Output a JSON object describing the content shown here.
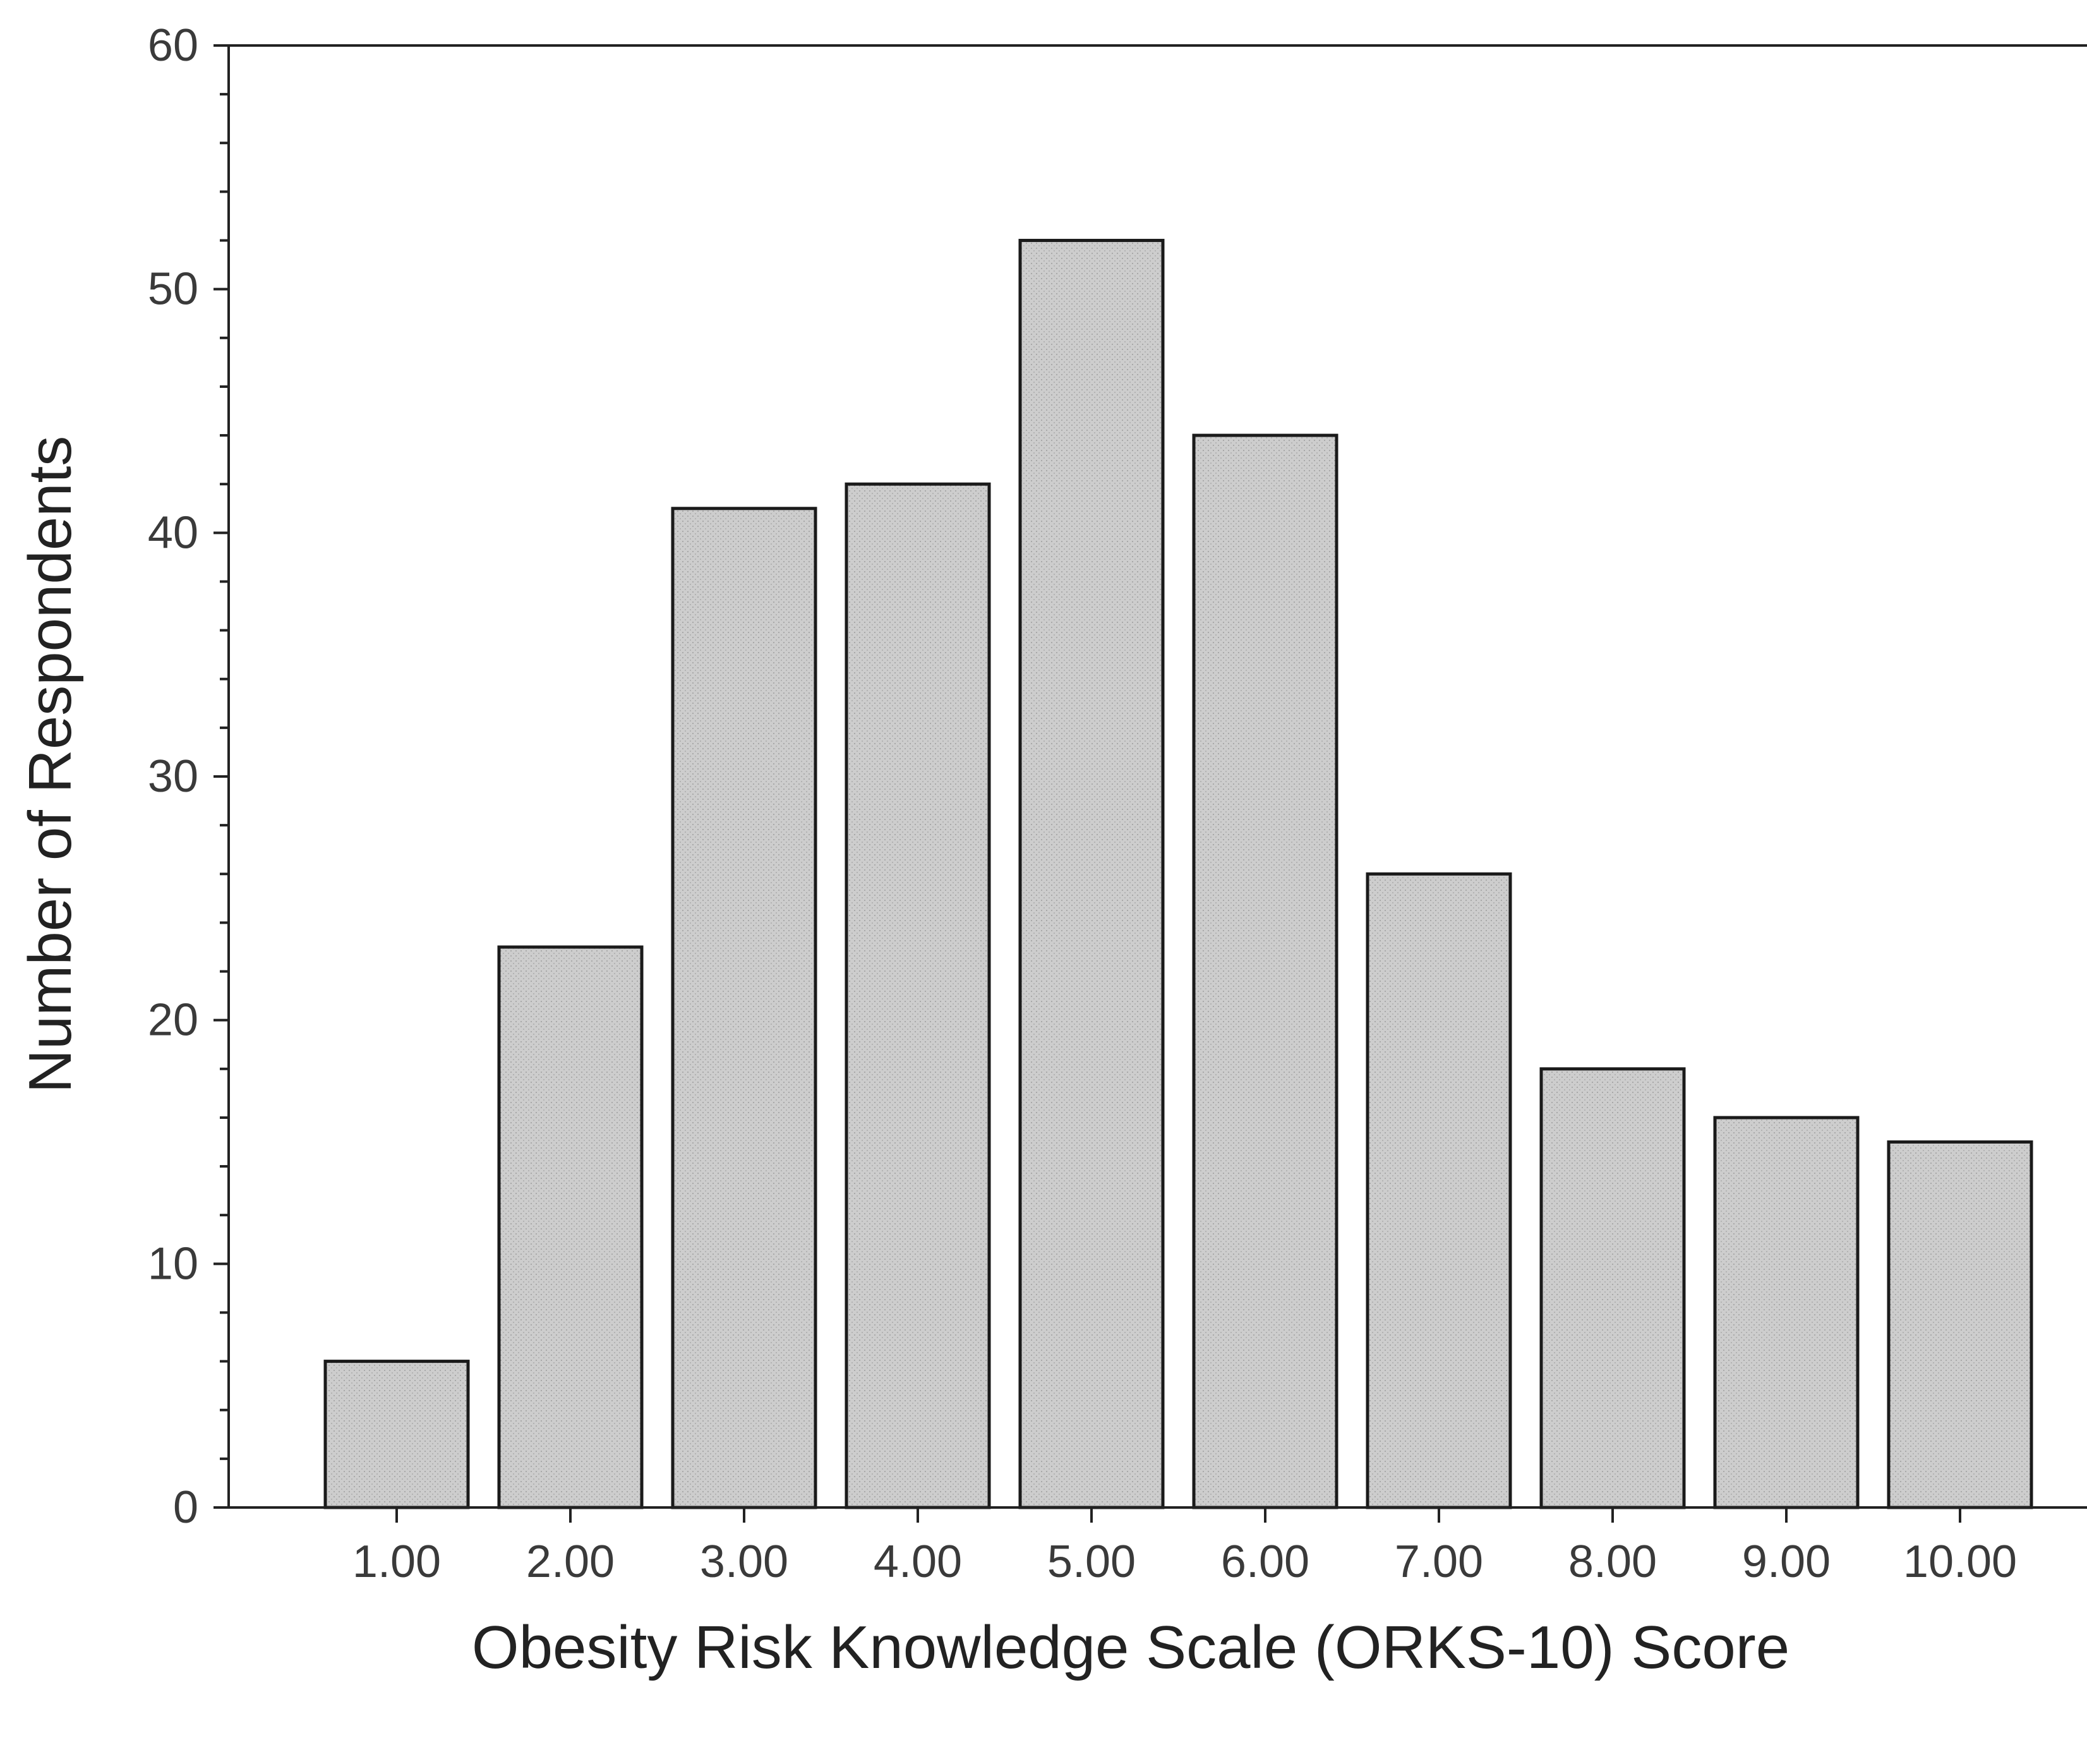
{
  "chart_data": {
    "type": "bar",
    "categories": [
      "1.00",
      "2.00",
      "3.00",
      "4.00",
      "5.00",
      "6.00",
      "7.00",
      "8.00",
      "9.00",
      "10.00"
    ],
    "values": [
      6,
      23,
      41,
      42,
      52,
      44,
      26,
      18,
      16,
      15
    ],
    "title": "",
    "xlabel": "Obesity Risk Knowledge Scale (ORKS-10) Score",
    "ylabel": "Number of Respondents",
    "ylim": [
      0,
      60
    ],
    "yticks": [
      "0",
      "10",
      "20",
      "30",
      "40",
      "50",
      "60"
    ],
    "grid": false,
    "legend": "none",
    "colors": {
      "bar_fill": "#c9c9c9",
      "bar_stroke": "#1a1a1a",
      "axis": "#222222"
    }
  }
}
